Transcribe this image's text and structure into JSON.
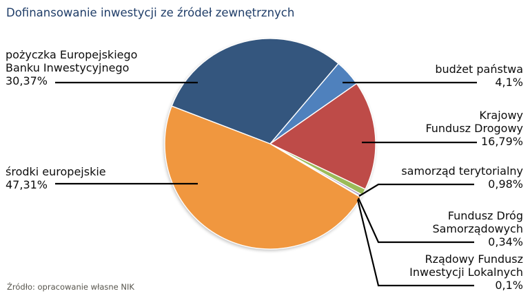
{
  "title": "Dofinansowanie inwestycji ze źródeł zewnętrznych",
  "source": "Źródło: opracowanie własne NIK",
  "chart_data": {
    "type": "pie",
    "title": "Dofinansowanie inwestycji ze źródeł zewnętrznych",
    "start_angle_deg": 291,
    "direction": "clockwise",
    "legend_position": "callout-labels",
    "leader_line_color": "#000000",
    "slice_border_color": "#ffffff",
    "slices": [
      {
        "id": "pozyczka-ebi",
        "label": "pożyczka Europejskiego Banku Inwestycyjnego",
        "label_lines": [
          "pożyczka Europejskiego",
          "Banku Inwestycyjnego"
        ],
        "value_pct": 30.37,
        "value_label": "30,37%",
        "color": "#34567e",
        "side": "left"
      },
      {
        "id": "budzet-panstwa",
        "label": "budżet państwa",
        "label_lines": [
          "budżet państwa"
        ],
        "value_pct": 4.1,
        "value_label": "4,1%",
        "color": "#4f81bd",
        "side": "right"
      },
      {
        "id": "krajowy-fundusz-drogowy",
        "label": "Krajowy Fundusz Drogowy",
        "label_lines": [
          "Krajowy",
          "Fundusz Drogowy"
        ],
        "value_pct": 16.79,
        "value_label": "16,79%",
        "color": "#be4b48",
        "side": "right"
      },
      {
        "id": "samorzad-terytorialny",
        "label": "samorząd terytorialny",
        "label_lines": [
          "samorząd terytorialny"
        ],
        "value_pct": 0.98,
        "value_label": "0,98%",
        "color": "#9bbb59",
        "side": "right"
      },
      {
        "id": "fundusz-drog-samorzadowych",
        "label": "Fundusz Dróg Samorządowych",
        "label_lines": [
          "Fundusz Dróg",
          "Samorządowych"
        ],
        "value_pct": 0.34,
        "value_label": "0,34%",
        "color": "#b2a1c7",
        "side": "right"
      },
      {
        "id": "rzadowy-fundusz-inwestycji-lokalnych",
        "label": "Rządowy Fundusz Inwestycji Lokalnych",
        "label_lines": [
          "Rządowy Fundusz",
          "Inwestycji Lokalnych"
        ],
        "value_pct": 0.1,
        "value_label": "0,1%",
        "color": "#4bacc6",
        "side": "right"
      },
      {
        "id": "srodki-europejskie",
        "label": "środki europejskie",
        "label_lines": [
          "środki europejskie"
        ],
        "value_pct": 47.31,
        "value_label": "47,31%",
        "color": "#f0973f",
        "side": "left"
      }
    ]
  }
}
